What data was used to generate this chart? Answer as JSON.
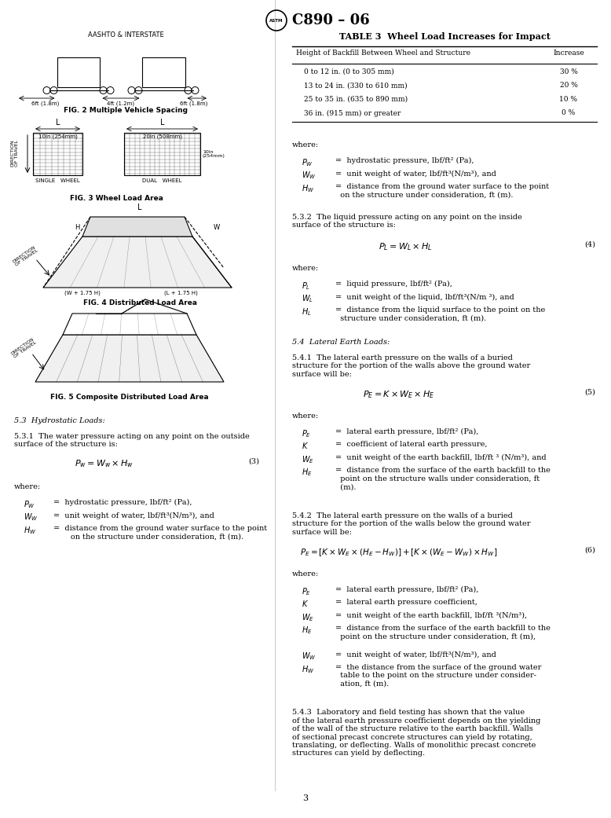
{
  "page_width": 7.78,
  "page_height": 10.41,
  "background_color": "#ffffff",
  "header_title": "C890 – 06",
  "table_title": "TABLE 3  Wheel Load Increases for Impact",
  "table_col1_header": "Height of Backfill Between Wheel and Structure",
  "table_col2_header": "Increase",
  "table_rows": [
    [
      "0 to 12 in. (0 to 305 mm)",
      "30 %"
    ],
    [
      "13 to 24 in. (330 to 610 mm)",
      "20 %"
    ],
    [
      "25 to 35 in. (635 to 890 mm)",
      "10 %"
    ],
    [
      "36 in. (915 mm) or greater",
      "0 %"
    ]
  ],
  "fig2_caption": "FIG. 2 Multiple Vehicle Spacing",
  "fig2_label": "AASHTO & INTERSTATE",
  "fig2_dims": [
    "6ft (1.8m)",
    "4ft (1.2m)",
    "6ft (1.8m)"
  ],
  "fig3_caption": "FIG. 3 Wheel Load Area",
  "fig3_single": "10in (254mm)",
  "fig3_dual": "20in (508mm)",
  "fig3_single_label": "SINGLE   WHEEL",
  "fig3_dual_label": "DUAL   WHEEL",
  "fig3_side_label": "10in\n(254mm)",
  "fig4_caption": "FIG. 4 Distributed Load Area",
  "fig5_caption": "FIG. 5 Composite Distributed Load Area",
  "section_53_title": "5.3  Hydrostatic Loads:",
  "section_531": "5.3.1  The water pressure acting on any point on the outside\nsurface of the structure is:",
  "eq3_num": "(3)",
  "where_531": [
    [
      "P_W",
      "=  hydrostatic pressure, lbf/ft² (Pa),"
    ],
    [
      "W_W",
      "=  unit weight of water, lbf/ft³(N/m³), and"
    ],
    [
      "H_W",
      "=  distance from the ground water surface to the point\n       on the structure under consideration, ft (m)."
    ]
  ],
  "section_532": "5.3.2  The liquid pressure acting on any point on the inside\nsurface of the structure is:",
  "eq4_num": "(4)",
  "where_532": [
    [
      "P_L",
      "=  liquid pressure, lbf/ft² (Pa),"
    ],
    [
      "W_L",
      "=  unit weight of the liquid, lbf/ft³(N/m ³), and"
    ],
    [
      "H_L",
      "=  distance from the liquid surface to the point on the\n       structure under consideration, ft (m)."
    ]
  ],
  "section_54_title": "5.4  Lateral Earth Loads:",
  "section_541": "5.4.1  The lateral earth pressure on the walls of a buried\nstructure for the portion of the walls above the ground water\nsurface will be:",
  "eq5_num": "(5)",
  "where_541": [
    [
      "P_E",
      "=  lateral earth pressure, lbf/ft² (Pa),"
    ],
    [
      "K",
      "=  coefficient of lateral earth pressure,"
    ],
    [
      "W_E",
      "=  unit weight of the earth backfill, lbf/ft ³ (N/m³), and"
    ],
    [
      "H_E",
      "=  distance from the surface of the earth backfill to the\n       point on the structure walls under consideration, ft\n       (m)."
    ]
  ],
  "section_542": "5.4.2  The lateral earth pressure on the walls of a buried\nstructure for the portion of the walls below the ground water\nsurface will be:",
  "eq6_num": "(6)",
  "where_542": [
    [
      "P_E",
      "=  lateral earth pressure, lbf/ft² (Pa),"
    ],
    [
      "K",
      "=  lateral earth pressure coefficient,"
    ],
    [
      "W_E",
      "=  unit weight of the earth backfill, lbf/ft ³(N/m³),"
    ],
    [
      "H_E",
      "=  distance from the surface of the earth backfill to the\n       point on the structure under consideration, ft (m),"
    ],
    [
      "W_W",
      "=  unit weight of water, lbf/ft³(N/m³), and"
    ],
    [
      "H_W",
      "=  the distance from the surface of the ground water\n       table to the point on the structure under consider-\n       ation, ft (m)."
    ]
  ],
  "section_543": "5.4.3  Laboratory and field testing has shown that the value\nof the lateral earth pressure coefficient depends on the yielding\nof the wall of the structure relative to the earth backfill. Walls\nof sectional precast concrete structures can yield by rotating,\ntranslating, or deflecting. Walls of monolithic precast concrete\nstructures can yield by deflecting.",
  "page_number": "3"
}
